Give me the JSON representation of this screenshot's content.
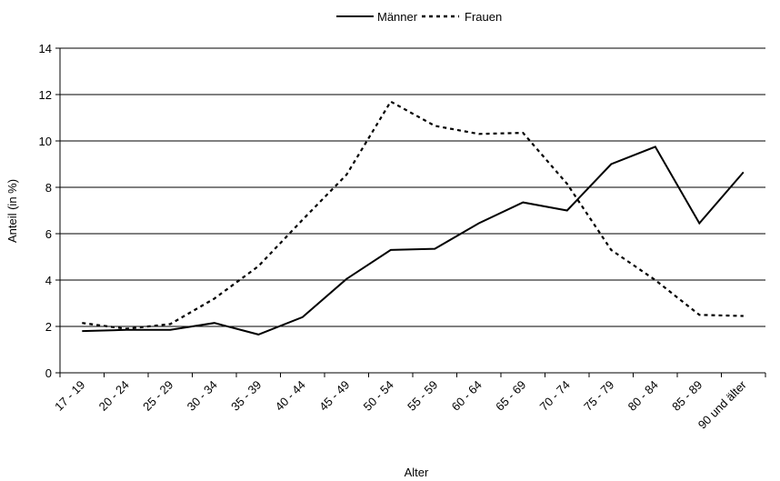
{
  "chart_data": {
    "type": "line",
    "xlabel": "Alter",
    "ylabel": "Anteil (in %)",
    "ylim": [
      0,
      14
    ],
    "yticks": [
      0,
      2,
      4,
      6,
      8,
      10,
      12,
      14
    ],
    "grid": true,
    "legend_position": "top-center",
    "categories": [
      "17 - 19",
      "20 - 24",
      "25 - 29",
      "30 - 34",
      "35 - 39",
      "40 - 44",
      "45 - 49",
      "50 - 54",
      "55 - 59",
      "60 - 64",
      "65 - 69",
      "70 - 74",
      "75 - 79",
      "80 - 84",
      "85 - 89",
      "90 und älter"
    ],
    "series": [
      {
        "name": "Männer",
        "style": "solid",
        "color": "#000000",
        "values": [
          1.8,
          1.85,
          1.85,
          2.15,
          1.65,
          2.4,
          4.05,
          5.3,
          5.35,
          6.45,
          7.35,
          7.0,
          9.0,
          9.75,
          6.45,
          8.65
        ]
      },
      {
        "name": "Frauen",
        "style": "dashed",
        "color": "#000000",
        "values": [
          2.15,
          1.9,
          2.1,
          3.2,
          4.6,
          6.6,
          8.55,
          11.7,
          10.65,
          10.3,
          10.35,
          8.15,
          5.3,
          4.0,
          2.5,
          2.45
        ]
      }
    ]
  }
}
